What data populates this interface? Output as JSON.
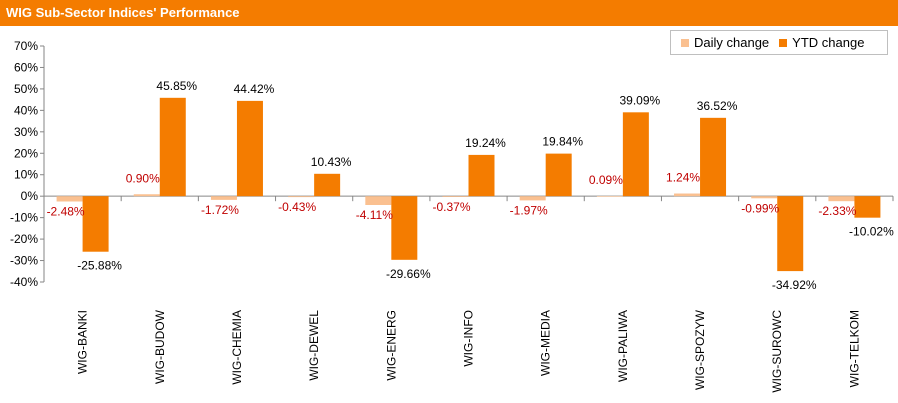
{
  "title": "WIG Sub-Sector Indices' Performance",
  "colors": {
    "title_bar": "#f47c00",
    "daily": "#fac090",
    "ytd": "#f47c00",
    "daily_label": "#c00000",
    "ytd_label": "#000000"
  },
  "legend": {
    "daily": "Daily change",
    "ytd": "YTD change"
  },
  "chart_data": {
    "type": "bar",
    "title": "WIG Sub-Sector Indices' Performance",
    "categories": [
      "WIG-BANKI",
      "WIG-BUDOW",
      "WIG-CHEMIA",
      "WIG-DEWEL",
      "WIG-ENERG",
      "WIG-INFO",
      "WIG-MEDIA",
      "WIG-PALIWA",
      "WIG-SPOZYW",
      "WIG-SUROWC",
      "WIG-TELKOM"
    ],
    "series": [
      {
        "name": "Daily change",
        "values": [
          -2.48,
          0.9,
          -1.72,
          -0.43,
          -4.11,
          -0.37,
          -1.97,
          0.09,
          1.24,
          -0.99,
          -2.33
        ],
        "labels": [
          "-2.48%",
          "0.90%",
          "-1.72%",
          "-0.43%",
          "-4.11%",
          "-0.37%",
          "-1.97%",
          "0.09%",
          "1.24%",
          "-0.99%",
          "-2.33%"
        ]
      },
      {
        "name": "YTD change",
        "values": [
          -25.88,
          45.85,
          44.42,
          10.43,
          -29.66,
          19.24,
          19.84,
          39.09,
          36.52,
          -34.92,
          -10.02
        ],
        "labels": [
          "-25.88%",
          "45.85%",
          "44.42%",
          "10.43%",
          "-29.66%",
          "19.24%",
          "19.84%",
          "39.09%",
          "36.52%",
          "-34.92%",
          "-10.02%"
        ]
      }
    ],
    "yticks": [
      70,
      60,
      50,
      40,
      30,
      20,
      10,
      0,
      -10,
      -20,
      -30,
      -40
    ],
    "ytick_labels": [
      "70%",
      "60%",
      "50%",
      "40%",
      "30%",
      "20%",
      "10%",
      "0%",
      "-10%",
      "-20%",
      "-30%",
      "-40%"
    ],
    "ylim": [
      -40,
      70
    ],
    "grid": false,
    "legend_position": "top-right"
  }
}
